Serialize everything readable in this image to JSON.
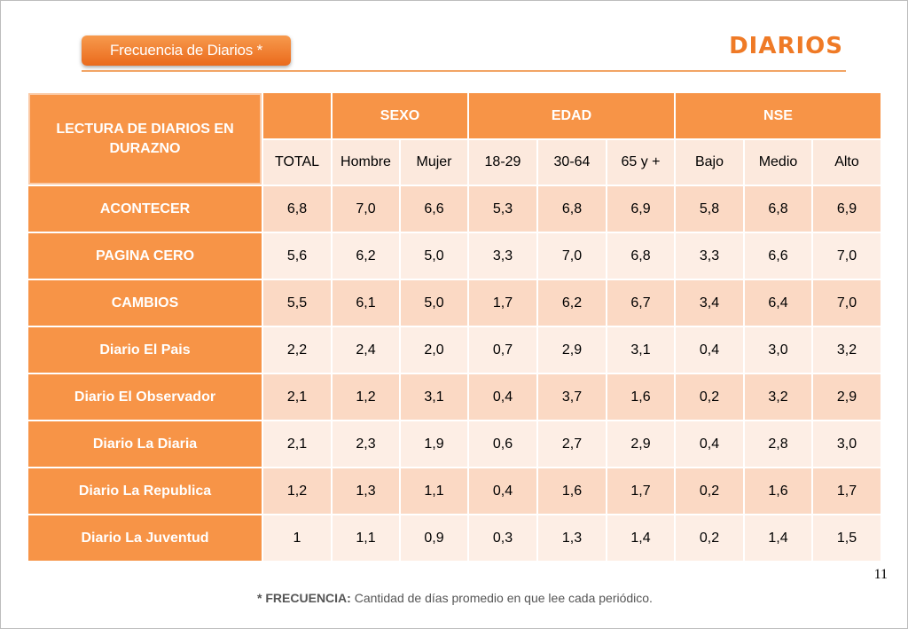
{
  "header": {
    "title": "Frecuencia de Diarios  *",
    "brand": "DIARIOS"
  },
  "table": {
    "corner_label": "LECTURA DE DIARIOS EN DURAZNO",
    "groups": {
      "sexo": "SEXO",
      "edad": "EDAD",
      "nse": "NSE"
    },
    "columns": [
      "TOTAL",
      "Hombre",
      "Mujer",
      "18-29",
      "30-64",
      "65 y +",
      "Bajo",
      "Medio",
      "Alto"
    ],
    "rows": [
      {
        "label": "ACONTECER",
        "values": [
          "6,8",
          "7,0",
          "6,6",
          "5,3",
          "6,8",
          "6,9",
          "5,8",
          "6,8",
          "6,9"
        ]
      },
      {
        "label": "PAGINA CERO",
        "values": [
          "5,6",
          "6,2",
          "5,0",
          "3,3",
          "7,0",
          "6,8",
          "3,3",
          "6,6",
          "7,0"
        ]
      },
      {
        "label": "CAMBIOS",
        "values": [
          "5,5",
          "6,1",
          "5,0",
          "1,7",
          "6,2",
          "6,7",
          "3,4",
          "6,4",
          "7,0"
        ]
      },
      {
        "label": "Diario El Pais",
        "values": [
          "2,2",
          "2,4",
          "2,0",
          "0,7",
          "2,9",
          "3,1",
          "0,4",
          "3,0",
          "3,2"
        ]
      },
      {
        "label": "Diario El Observador",
        "values": [
          "2,1",
          "1,2",
          "3,1",
          "0,4",
          "3,7",
          "1,6",
          "0,2",
          "3,2",
          "2,9"
        ]
      },
      {
        "label": "Diario La Diaria",
        "values": [
          "2,1",
          "2,3",
          "1,9",
          "0,6",
          "2,7",
          "2,9",
          "0,4",
          "2,8",
          "3,0"
        ]
      },
      {
        "label": "Diario La Republica",
        "values": [
          "1,2",
          "1,3",
          "1,1",
          "0,4",
          "1,6",
          "1,7",
          "0,2",
          "1,6",
          "1,7"
        ]
      },
      {
        "label": "Diario La Juventud",
        "values": [
          "1",
          "1,1",
          "0,9",
          "0,3",
          "1,3",
          "1,4",
          "0,2",
          "1,4",
          "1,5"
        ]
      }
    ]
  },
  "footnote": {
    "prefix": "* FRECUENCIA:",
    "text": " Cantidad  de días promedio en que lee cada periódico."
  },
  "page_number": "11",
  "colors": {
    "accent": "#f79447",
    "brand": "#ef7a26",
    "row_odd": "#fbd9c4",
    "row_even": "#fdeee5"
  }
}
